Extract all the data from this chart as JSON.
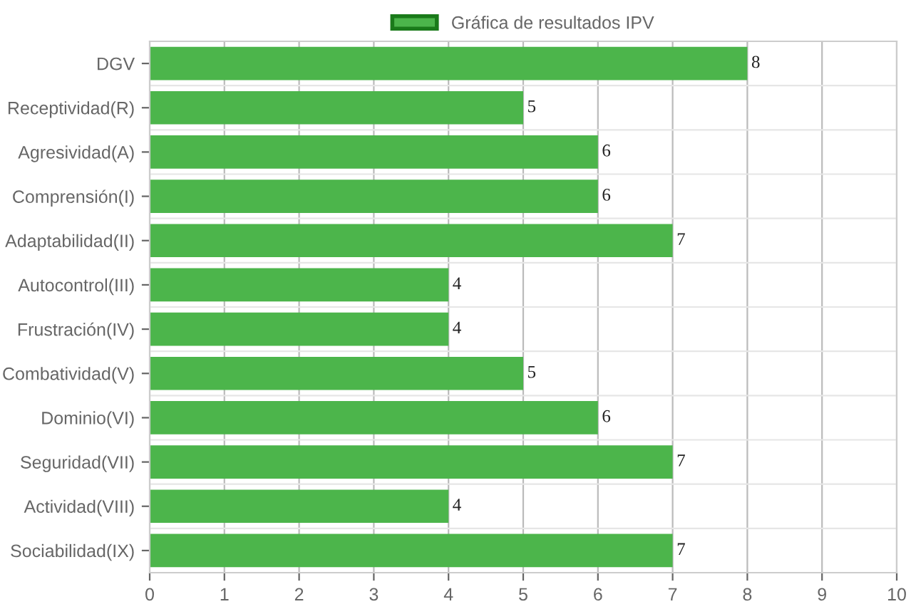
{
  "chart_data": {
    "type": "bar",
    "orientation": "horizontal",
    "categories": [
      "DGV",
      "Receptividad(R)",
      "Agresividad(A)",
      "Comprensión(I)",
      "Adaptabilidad(II)",
      "Autocontrol(III)",
      "Frustración(IV)",
      "Combatividad(V)",
      "Dominio(VI)",
      "Seguridad(VII)",
      "Actividad(VIII)",
      "Sociabilidad(IX)"
    ],
    "series": [
      {
        "name": "Gráfica de resultados IPV",
        "color": "#4cb54b",
        "values": [
          8,
          5,
          6,
          6,
          7,
          4,
          4,
          5,
          6,
          7,
          4,
          7
        ]
      }
    ],
    "xlim": [
      0,
      10
    ],
    "xticks": [
      0,
      1,
      2,
      3,
      4,
      5,
      6,
      7,
      8,
      9,
      10
    ],
    "data_labels": true,
    "grid": true,
    "legend": "top"
  }
}
